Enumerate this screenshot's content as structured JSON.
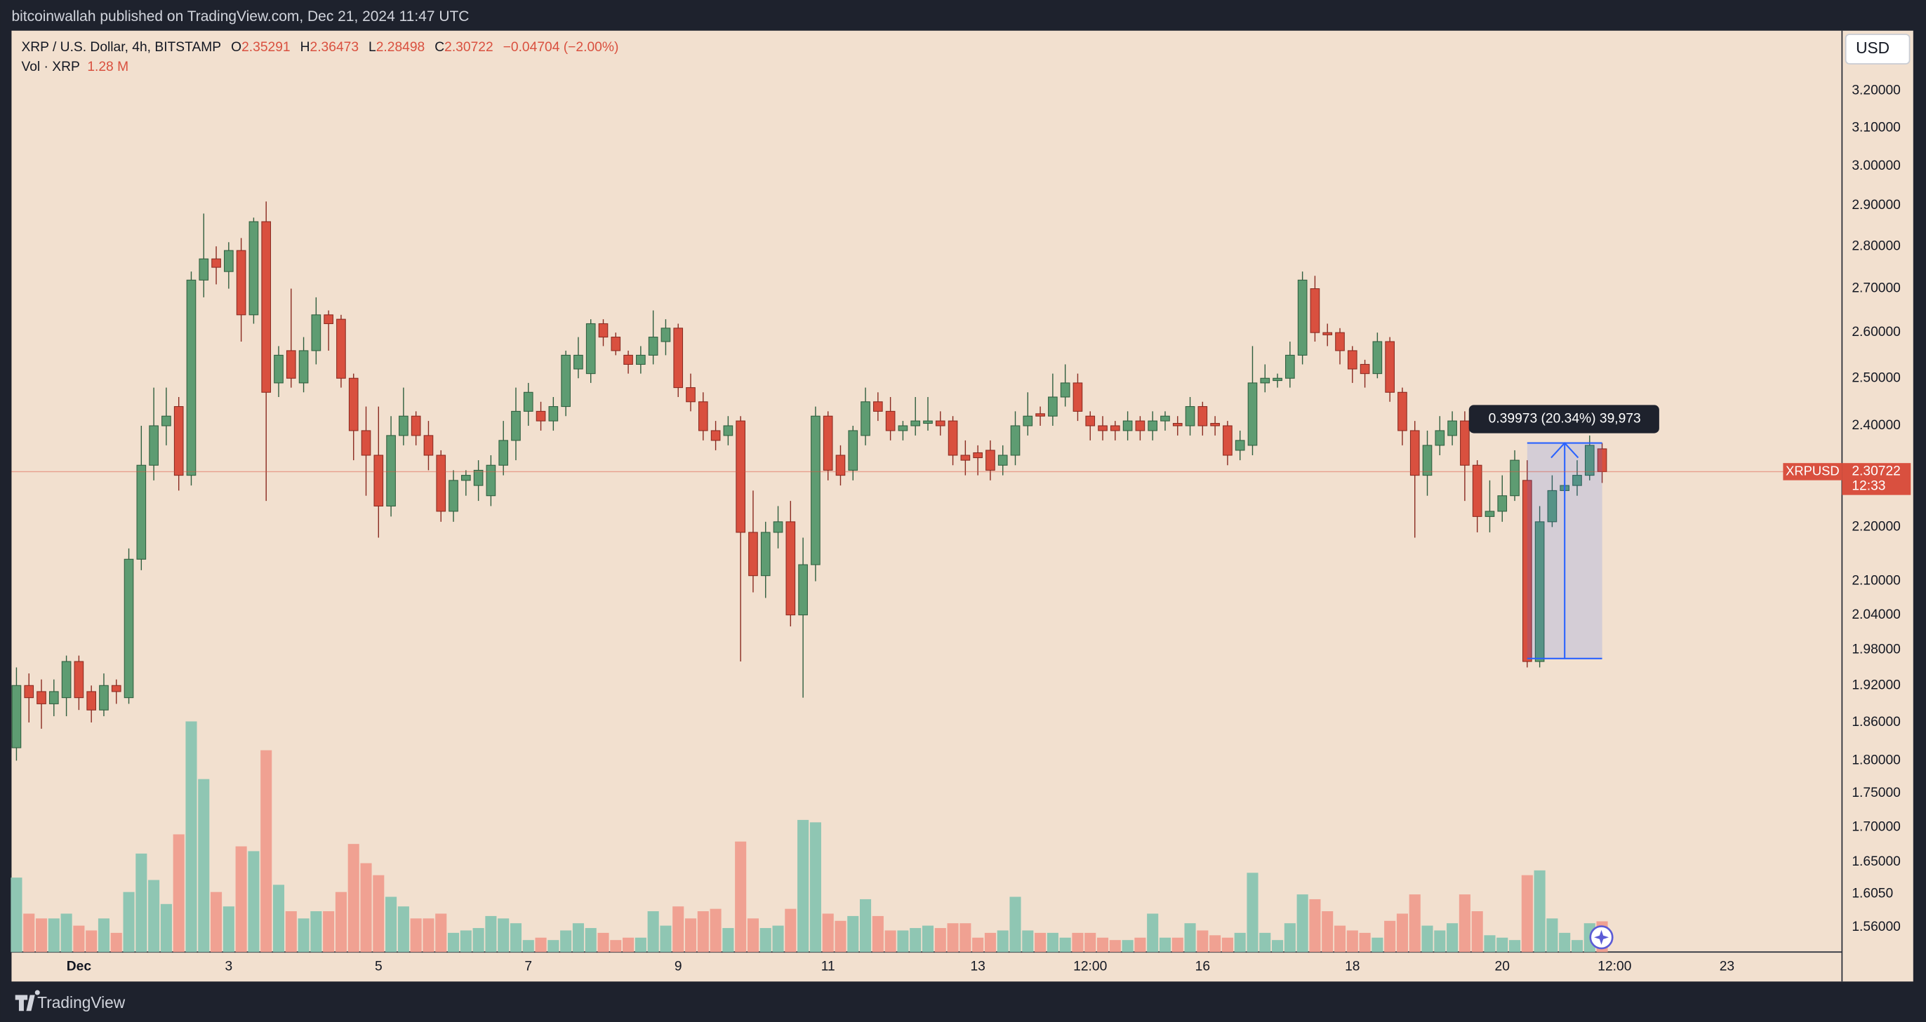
{
  "header": {
    "published": "bitcoinwallah published on TradingView.com, Dec 21, 2024 11:47 UTC"
  },
  "footer": {
    "brand": "TradingView"
  },
  "chart_data": {
    "type": "candlestick",
    "symbol": "XRP / U.S. Dollar, 4h, BITSTAMP",
    "ohlc_keys": [
      "O",
      "H",
      "L",
      "C"
    ],
    "change": "−0.04704 (−2.00%)",
    "volume_title": "Vol · XRP",
    "volume_label": "1.28 M",
    "currency": "USD",
    "ticker": "XRPUSD",
    "countdown": "12:33",
    "log_scale": true,
    "up_color": "#5e9c72",
    "down_color": "#d9503f",
    "volume_up_color": "#8fc6b3",
    "volume_down_color": "#f0a192",
    "ylim": [
      1.527,
      3.37
    ],
    "yticks": [
      {
        "value": 3.2,
        "label": "3.20000"
      },
      {
        "value": 3.1,
        "label": "3.10000"
      },
      {
        "value": 3.0,
        "label": "3.00000"
      },
      {
        "value": 2.9,
        "label": "2.90000"
      },
      {
        "value": 2.8,
        "label": "2.80000"
      },
      {
        "value": 2.7,
        "label": "2.70000"
      },
      {
        "value": 2.6,
        "label": "2.60000"
      },
      {
        "value": 2.5,
        "label": "2.50000"
      },
      {
        "value": 2.4,
        "label": "2.40000"
      },
      {
        "value": 2.2,
        "label": "2.20000"
      },
      {
        "value": 2.1,
        "label": "2.10000"
      },
      {
        "value": 2.04,
        "label": "2.04000"
      },
      {
        "value": 1.98,
        "label": "1.98000"
      },
      {
        "value": 1.92,
        "label": "1.92000"
      },
      {
        "value": 1.86,
        "label": "1.86000"
      },
      {
        "value": 1.8,
        "label": "1.80000"
      },
      {
        "value": 1.75,
        "label": "1.75000"
      },
      {
        "value": 1.7,
        "label": "1.70000"
      },
      {
        "value": 1.65,
        "label": "1.65000"
      },
      {
        "value": 1.605,
        "label": "1.6050"
      },
      {
        "value": 1.56,
        "label": "1.56000"
      }
    ],
    "xticks": [
      {
        "value": 5,
        "label": "Dec"
      },
      {
        "value": 17,
        "label": "3"
      },
      {
        "value": 29,
        "label": "5"
      },
      {
        "value": 41,
        "label": "7"
      },
      {
        "value": 53,
        "label": "9"
      },
      {
        "value": 65,
        "label": "11"
      },
      {
        "value": 77,
        "label": "13"
      },
      {
        "value": 86,
        "label": "12:00"
      },
      {
        "value": 95,
        "label": "16"
      },
      {
        "value": 107,
        "label": "18"
      },
      {
        "value": 119,
        "label": "20"
      },
      {
        "value": 128,
        "label": "12:00"
      },
      {
        "value": 137,
        "label": "23"
      }
    ],
    "series": {
      "open": [
        1.82,
        1.92,
        1.91,
        1.89,
        1.9,
        1.96,
        1.91,
        1.88,
        1.92,
        1.9,
        2.14,
        2.32,
        2.4,
        2.44,
        2.3,
        2.72,
        2.77,
        2.74,
        2.79,
        2.64,
        2.86,
        2.49,
        2.56,
        2.49,
        2.56,
        2.64,
        2.63,
        2.5,
        2.39,
        2.34,
        2.24,
        2.38,
        2.42,
        2.38,
        2.34,
        2.23,
        2.29,
        2.28,
        2.26,
        2.32,
        2.37,
        2.43,
        2.43,
        2.41,
        2.44,
        2.52,
        2.51,
        2.62,
        2.59,
        2.55,
        2.53,
        2.55,
        2.58,
        2.61,
        2.48,
        2.45,
        2.39,
        2.38,
        2.41,
        2.19,
        2.11,
        2.19,
        2.21,
        2.04,
        2.13,
        2.42,
        2.34,
        2.31,
        2.38,
        2.45,
        2.43,
        2.39,
        2.4,
        2.405,
        2.41,
        2.41,
        2.34,
        2.345,
        2.35,
        2.32,
        2.34,
        2.4,
        2.425,
        2.42,
        2.46,
        2.49,
        2.42,
        2.4,
        2.4,
        2.39,
        2.41,
        2.39,
        2.41,
        2.405,
        2.4,
        2.44,
        2.405,
        2.4,
        2.35,
        2.36,
        2.49,
        2.495,
        2.5,
        2.55,
        2.7,
        2.6,
        2.6,
        2.56,
        2.53,
        2.51,
        2.58,
        2.47,
        2.39,
        2.3,
        2.36,
        2.38,
        2.41,
        2.32,
        2.22,
        2.23,
        2.26,
        2.29,
        1.96,
        2.21,
        2.27,
        2.28,
        2.3,
        2.35291
      ],
      "high": [
        1.95,
        1.94,
        1.93,
        1.93,
        1.97,
        1.97,
        1.92,
        1.94,
        1.93,
        2.16,
        2.4,
        2.48,
        2.48,
        2.46,
        2.74,
        2.88,
        2.8,
        2.81,
        2.82,
        2.87,
        2.91,
        2.57,
        2.7,
        2.59,
        2.68,
        2.65,
        2.64,
        2.51,
        2.44,
        2.44,
        2.42,
        2.48,
        2.43,
        2.41,
        2.35,
        2.31,
        2.31,
        2.33,
        2.34,
        2.41,
        2.48,
        2.49,
        2.45,
        2.46,
        2.56,
        2.59,
        2.63,
        2.63,
        2.6,
        2.56,
        2.57,
        2.65,
        2.63,
        2.62,
        2.51,
        2.47,
        2.41,
        2.42,
        2.42,
        2.27,
        2.21,
        2.24,
        2.25,
        2.18,
        2.44,
        2.43,
        2.36,
        2.4,
        2.48,
        2.47,
        2.46,
        2.41,
        2.46,
        2.46,
        2.43,
        2.42,
        2.37,
        2.36,
        2.37,
        2.36,
        2.43,
        2.47,
        2.44,
        2.51,
        2.53,
        2.51,
        2.43,
        2.42,
        2.41,
        2.43,
        2.42,
        2.43,
        2.43,
        2.42,
        2.46,
        2.45,
        2.42,
        2.41,
        2.39,
        2.57,
        2.53,
        2.51,
        2.58,
        2.74,
        2.73,
        2.62,
        2.61,
        2.57,
        2.54,
        2.6,
        2.59,
        2.48,
        2.41,
        2.39,
        2.42,
        2.43,
        2.43,
        2.33,
        2.29,
        2.3,
        2.35,
        2.33,
        2.24,
        2.3,
        2.31,
        2.33,
        2.38,
        2.36473
      ],
      "low": [
        1.8,
        1.86,
        1.85,
        1.87,
        1.87,
        1.88,
        1.86,
        1.87,
        1.89,
        1.89,
        2.12,
        2.29,
        2.36,
        2.27,
        2.28,
        2.68,
        2.71,
        2.7,
        2.58,
        2.62,
        2.25,
        2.46,
        2.48,
        2.47,
        2.53,
        2.56,
        2.48,
        2.33,
        2.26,
        2.18,
        2.22,
        2.36,
        2.36,
        2.31,
        2.21,
        2.21,
        2.26,
        2.25,
        2.24,
        2.3,
        2.33,
        2.4,
        2.39,
        2.39,
        2.42,
        2.5,
        2.49,
        2.57,
        2.55,
        2.51,
        2.51,
        2.53,
        2.55,
        2.46,
        2.43,
        2.37,
        2.35,
        2.36,
        1.96,
        2.08,
        2.07,
        2.16,
        2.02,
        1.9,
        2.1,
        2.29,
        2.28,
        2.29,
        2.36,
        2.41,
        2.37,
        2.37,
        2.38,
        2.39,
        2.38,
        2.32,
        2.3,
        2.3,
        2.29,
        2.3,
        2.32,
        2.38,
        2.4,
        2.4,
        2.44,
        2.41,
        2.37,
        2.37,
        2.37,
        2.37,
        2.37,
        2.37,
        2.39,
        2.38,
        2.38,
        2.38,
        2.38,
        2.32,
        2.33,
        2.34,
        2.47,
        2.48,
        2.48,
        2.53,
        2.58,
        2.57,
        2.53,
        2.49,
        2.48,
        2.5,
        2.45,
        2.36,
        2.18,
        2.26,
        2.34,
        2.36,
        2.25,
        2.19,
        2.19,
        2.21,
        2.25,
        1.95,
        1.95,
        2.2,
        2.23,
        2.26,
        2.29,
        2.28498
      ],
      "close": [
        1.92,
        1.9,
        1.89,
        1.91,
        1.96,
        1.9,
        1.88,
        1.92,
        1.91,
        2.14,
        2.32,
        2.4,
        2.42,
        2.3,
        2.72,
        2.77,
        2.75,
        2.79,
        2.64,
        2.86,
        2.47,
        2.55,
        2.5,
        2.56,
        2.64,
        2.62,
        2.5,
        2.39,
        2.34,
        2.24,
        2.38,
        2.42,
        2.38,
        2.34,
        2.23,
        2.29,
        2.3,
        2.31,
        2.32,
        2.37,
        2.43,
        2.47,
        2.41,
        2.44,
        2.55,
        2.55,
        2.62,
        2.59,
        2.56,
        2.53,
        2.55,
        2.59,
        2.61,
        2.48,
        2.45,
        2.39,
        2.37,
        2.4,
        2.19,
        2.11,
        2.19,
        2.21,
        2.04,
        2.13,
        2.42,
        2.31,
        2.3,
        2.39,
        2.45,
        2.43,
        2.39,
        2.4,
        2.41,
        2.41,
        2.4,
        2.34,
        2.33,
        2.335,
        2.31,
        2.34,
        2.4,
        2.42,
        2.42,
        2.46,
        2.49,
        2.43,
        2.4,
        2.39,
        2.39,
        2.41,
        2.39,
        2.41,
        2.42,
        2.4,
        2.44,
        2.4,
        2.4,
        2.34,
        2.37,
        2.49,
        2.5,
        2.5,
        2.55,
        2.72,
        2.6,
        2.595,
        2.56,
        2.52,
        2.51,
        2.58,
        2.47,
        2.39,
        2.3,
        2.36,
        2.39,
        2.41,
        2.32,
        2.22,
        2.23,
        2.26,
        2.33,
        1.96,
        2.21,
        2.27,
        2.28,
        2.3,
        2.36,
        2.30722
      ],
      "volume": [
        3.1,
        1.6,
        1.4,
        1.4,
        1.6,
        1.1,
        0.9,
        1.4,
        0.8,
        2.5,
        4.1,
        3.0,
        2.0,
        4.9,
        9.6,
        7.2,
        2.5,
        1.9,
        4.4,
        4.2,
        8.4,
        2.8,
        1.7,
        1.4,
        1.7,
        1.7,
        2.5,
        4.5,
        3.7,
        3.2,
        2.3,
        1.9,
        1.4,
        1.4,
        1.6,
        0.8,
        0.9,
        1.0,
        1.5,
        1.4,
        1.2,
        0.5,
        0.6,
        0.5,
        0.9,
        1.2,
        1.0,
        0.8,
        0.5,
        0.6,
        0.6,
        1.7,
        1.1,
        1.9,
        1.4,
        1.7,
        1.8,
        1.0,
        4.6,
        1.4,
        1.0,
        1.1,
        1.8,
        5.5,
        5.4,
        1.6,
        1.3,
        1.5,
        2.2,
        1.5,
        0.9,
        0.9,
        1.0,
        1.1,
        1.0,
        1.2,
        1.2,
        0.6,
        0.8,
        0.9,
        2.3,
        0.9,
        0.8,
        0.8,
        0.6,
        0.8,
        0.8,
        0.6,
        0.5,
        0.5,
        0.6,
        1.6,
        0.6,
        0.6,
        1.2,
        0.9,
        0.7,
        0.6,
        0.8,
        3.3,
        0.8,
        0.5,
        1.2,
        2.4,
        2.2,
        1.7,
        1.1,
        0.9,
        0.8,
        0.6,
        1.3,
        1.6,
        2.4,
        1.1,
        0.9,
        1.2,
        2.4,
        1.7,
        0.7,
        0.6,
        0.5,
        3.2,
        3.4,
        1.4,
        0.8,
        0.5,
        1.2,
        1.28
      ]
    },
    "measure": {
      "from": 121,
      "to": 127,
      "low": 1.96499,
      "high": 2.36472,
      "label": "0.39973 (20.34%) 39,973",
      "color": "#2962ff"
    }
  }
}
